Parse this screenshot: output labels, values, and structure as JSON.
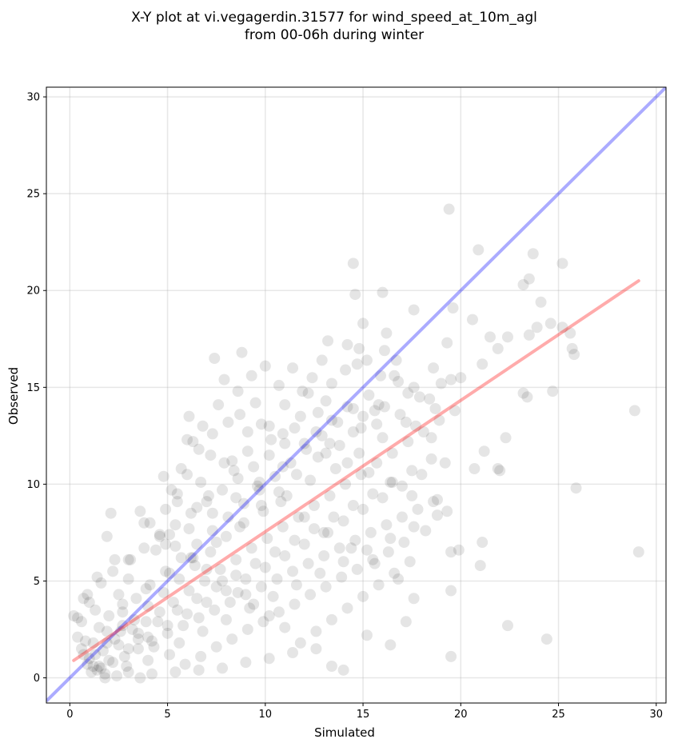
{
  "chart_data": {
    "type": "scatter",
    "title_line1": "X-Y plot at vi.vegagerdin.31577 for wind_speed_at_10m_agl",
    "title_line2": "from 00-06h during winter",
    "xlabel": "Simulated",
    "ylabel": "Observed",
    "xlim": [
      -1.2,
      30.5
    ],
    "ylim": [
      -1.3,
      30.5
    ],
    "xticks": [
      0,
      5,
      10,
      15,
      20,
      25,
      30
    ],
    "yticks": [
      0,
      5,
      10,
      15,
      20,
      25,
      30
    ],
    "xtick_labels": [
      "0",
      "5",
      "10",
      "15",
      "20",
      "25",
      "30"
    ],
    "ytick_labels": [
      "0",
      "5",
      "10",
      "15",
      "20",
      "25",
      "30"
    ],
    "grid": true,
    "point_color": "#000000",
    "point_alpha": 0.1,
    "point_radius_note": "large translucent markers",
    "reference_line": {
      "name": "1:1",
      "color": "#0000ff",
      "alpha": 0.33,
      "from": [
        -1.2,
        -1.2
      ],
      "to": [
        30.5,
        30.5
      ]
    },
    "regression_line": {
      "color": "#ff0000",
      "alpha": 0.33,
      "from": [
        0.2,
        0.9
      ],
      "to": [
        29.1,
        20.5
      ]
    },
    "points": [
      [
        19.4,
        24.2
      ],
      [
        20.9,
        22.1
      ],
      [
        23.7,
        21.9
      ],
      [
        14.5,
        21.4
      ],
      [
        25.2,
        21.4
      ],
      [
        23.5,
        20.6
      ],
      [
        23.2,
        20.3
      ],
      [
        14.6,
        19.8
      ],
      [
        16.0,
        19.9
      ],
      [
        24.1,
        19.4
      ],
      [
        19.6,
        19.1
      ],
      [
        17.6,
        19.0
      ],
      [
        20.6,
        18.5
      ],
      [
        24.6,
        18.3
      ],
      [
        15.0,
        18.3
      ],
      [
        23.9,
        18.1
      ],
      [
        25.2,
        18.1
      ],
      [
        25.6,
        17.8
      ],
      [
        16.2,
        17.8
      ],
      [
        23.5,
        17.7
      ],
      [
        21.5,
        17.6
      ],
      [
        22.4,
        17.6
      ],
      [
        19.3,
        17.3
      ],
      [
        14.2,
        17.2
      ],
      [
        13.2,
        17.4
      ],
      [
        14.8,
        17.0
      ],
      [
        21.9,
        17.0
      ],
      [
        25.7,
        17.0
      ],
      [
        25.8,
        16.7
      ],
      [
        8.8,
        16.8
      ],
      [
        7.4,
        16.5
      ],
      [
        21.1,
        16.2
      ],
      [
        18.6,
        16.0
      ],
      [
        20.0,
        15.5
      ],
      [
        19.5,
        15.4
      ],
      [
        23.2,
        14.7
      ],
      [
        23.4,
        14.5
      ],
      [
        24.7,
        14.8
      ],
      [
        28.9,
        13.8
      ],
      [
        22.3,
        12.4
      ],
      [
        21.2,
        11.7
      ],
      [
        21.9,
        10.8
      ],
      [
        20.7,
        10.8
      ],
      [
        25.9,
        9.8
      ],
      [
        22.0,
        10.7
      ],
      [
        21.1,
        7.0
      ],
      [
        19.9,
        6.6
      ],
      [
        19.5,
        6.5
      ],
      [
        29.1,
        6.5
      ],
      [
        21.0,
        5.8
      ],
      [
        19.5,
        4.5
      ],
      [
        22.4,
        2.7
      ],
      [
        24.4,
        2.0
      ],
      [
        19.5,
        1.1
      ],
      [
        6.1,
        13.5
      ],
      [
        6.3,
        12.2
      ],
      [
        7.9,
        15.4
      ],
      [
        9.3,
        15.6
      ],
      [
        10.0,
        16.1
      ],
      [
        11.4,
        16.0
      ],
      [
        12.9,
        16.4
      ],
      [
        3.6,
        8.6
      ],
      [
        2.1,
        8.5
      ],
      [
        1.9,
        7.3
      ],
      [
        4.1,
        8.0
      ],
      [
        5.7,
        10.8
      ],
      [
        4.8,
        10.4
      ],
      [
        5.2,
        9.7
      ],
      [
        3.1,
        6.1
      ],
      [
        2.3,
        6.1
      ],
      [
        1.4,
        5.2
      ],
      [
        0.9,
        4.3
      ],
      [
        0.7,
        4.1
      ],
      [
        0.4,
        3.1
      ],
      [
        0.2,
        3.2
      ],
      [
        1.3,
        3.5
      ],
      [
        2.0,
        3.2
      ],
      [
        2.5,
        4.3
      ],
      [
        3.0,
        5.1
      ],
      [
        4.4,
        6.6
      ],
      [
        5.1,
        7.4
      ],
      [
        6.5,
        8.8
      ],
      [
        7.1,
        9.4
      ],
      [
        8.3,
        11.2
      ],
      [
        9.1,
        12.7
      ],
      [
        10.2,
        13.0
      ],
      [
        11.0,
        14.1
      ],
      [
        12.2,
        14.7
      ],
      [
        13.4,
        15.2
      ],
      [
        14.1,
        15.9
      ],
      [
        15.2,
        16.4
      ],
      [
        16.1,
        16.9
      ],
      [
        16.8,
        15.3
      ],
      [
        17.3,
        14.7
      ],
      [
        15.6,
        13.8
      ],
      [
        14.9,
        12.9
      ],
      [
        13.8,
        12.0
      ],
      [
        12.7,
        11.4
      ],
      [
        11.6,
        10.5
      ],
      [
        10.7,
        9.6
      ],
      [
        9.8,
        8.9
      ],
      [
        8.9,
        8.0
      ],
      [
        8.0,
        7.3
      ],
      [
        7.2,
        6.5
      ],
      [
        6.4,
        5.8
      ],
      [
        5.6,
        5.1
      ],
      [
        4.8,
        4.4
      ],
      [
        4.0,
        3.7
      ],
      [
        3.3,
        3.0
      ],
      [
        2.6,
        2.4
      ],
      [
        1.9,
        1.8
      ],
      [
        1.3,
        1.2
      ],
      [
        0.9,
        0.7
      ],
      [
        1.1,
        0.3
      ],
      [
        1.6,
        0.5
      ],
      [
        2.2,
        0.8
      ],
      [
        2.8,
        1.1
      ],
      [
        3.5,
        1.5
      ],
      [
        4.2,
        1.9
      ],
      [
        5.0,
        2.3
      ],
      [
        5.8,
        2.7
      ],
      [
        6.6,
        3.1
      ],
      [
        7.4,
        3.5
      ],
      [
        8.2,
        3.9
      ],
      [
        9.0,
        4.3
      ],
      [
        9.8,
        4.7
      ],
      [
        10.6,
        5.1
      ],
      [
        11.4,
        5.5
      ],
      [
        12.2,
        5.9
      ],
      [
        13.0,
        6.3
      ],
      [
        13.8,
        6.7
      ],
      [
        14.6,
        7.1
      ],
      [
        15.4,
        7.5
      ],
      [
        16.2,
        7.9
      ],
      [
        17.0,
        8.3
      ],
      [
        17.8,
        8.7
      ],
      [
        18.6,
        9.1
      ],
      [
        18.8,
        9.2
      ],
      [
        17.5,
        9.4
      ],
      [
        16.4,
        10.1
      ],
      [
        15.3,
        10.6
      ],
      [
        14.2,
        11.1
      ],
      [
        13.1,
        11.6
      ],
      [
        12.0,
        12.1
      ],
      [
        10.9,
        12.6
      ],
      [
        9.8,
        13.1
      ],
      [
        8.7,
        13.6
      ],
      [
        7.6,
        14.1
      ],
      [
        6.8,
        13.0
      ],
      [
        6.0,
        12.3
      ],
      [
        7.2,
        11.5
      ],
      [
        8.4,
        10.7
      ],
      [
        9.6,
        9.9
      ],
      [
        10.8,
        9.1
      ],
      [
        12.0,
        8.3
      ],
      [
        13.2,
        7.5
      ],
      [
        14.4,
        6.7
      ],
      [
        15.6,
        5.9
      ],
      [
        16.8,
        5.1
      ],
      [
        17.6,
        4.1
      ],
      [
        17.2,
        2.9
      ],
      [
        16.4,
        1.7
      ],
      [
        15.2,
        2.2
      ],
      [
        14.0,
        0.4
      ],
      [
        13.4,
        0.6
      ],
      [
        12.6,
        1.5
      ],
      [
        11.4,
        1.3
      ],
      [
        10.2,
        1.0
      ],
      [
        9.0,
        0.8
      ],
      [
        7.8,
        0.5
      ],
      [
        6.6,
        0.4
      ],
      [
        5.4,
        0.3
      ],
      [
        4.2,
        0.2
      ],
      [
        3.6,
        0.0
      ],
      [
        3.0,
        0.3
      ],
      [
        2.4,
        0.1
      ],
      [
        1.8,
        0.2
      ],
      [
        1.4,
        0.4
      ],
      [
        1.2,
        0.6
      ],
      [
        1.0,
        1.0
      ],
      [
        1.7,
        1.4
      ],
      [
        2.3,
        2.0
      ],
      [
        3.2,
        2.5
      ],
      [
        3.9,
        2.9
      ],
      [
        4.6,
        3.4
      ],
      [
        5.3,
        3.9
      ],
      [
        6.1,
        4.5
      ],
      [
        6.9,
        5.0
      ],
      [
        7.7,
        5.6
      ],
      [
        8.5,
        6.1
      ],
      [
        9.3,
        6.7
      ],
      [
        10.1,
        7.2
      ],
      [
        10.9,
        7.8
      ],
      [
        11.7,
        8.3
      ],
      [
        12.5,
        8.9
      ],
      [
        13.3,
        9.4
      ],
      [
        14.1,
        10.0
      ],
      [
        14.9,
        10.5
      ],
      [
        15.7,
        11.1
      ],
      [
        16.5,
        11.6
      ],
      [
        17.3,
        12.2
      ],
      [
        18.1,
        12.7
      ],
      [
        18.9,
        13.3
      ],
      [
        19.7,
        13.8
      ],
      [
        18.4,
        14.4
      ],
      [
        17.6,
        15.0
      ],
      [
        16.6,
        15.6
      ],
      [
        15.8,
        14.1
      ],
      [
        15.0,
        13.5
      ],
      [
        14.2,
        14.0
      ],
      [
        13.4,
        13.3
      ],
      [
        12.6,
        12.7
      ],
      [
        11.8,
        13.5
      ],
      [
        11.0,
        12.1
      ],
      [
        10.2,
        11.5
      ],
      [
        9.4,
        10.9
      ],
      [
        8.6,
        10.3
      ],
      [
        7.8,
        9.7
      ],
      [
        7.0,
        9.1
      ],
      [
        6.2,
        8.5
      ],
      [
        5.4,
        7.9
      ],
      [
        4.6,
        7.3
      ],
      [
        3.8,
        6.7
      ],
      [
        3.0,
        6.1
      ],
      [
        2.2,
        5.5
      ],
      [
        1.6,
        4.9
      ],
      [
        1.0,
        3.9
      ],
      [
        0.6,
        2.9
      ],
      [
        0.4,
        2.1
      ],
      [
        0.6,
        1.5
      ],
      [
        0.8,
        1.9
      ],
      [
        1.5,
        2.6
      ],
      [
        2.7,
        3.4
      ],
      [
        3.4,
        4.1
      ],
      [
        4.1,
        4.8
      ],
      [
        4.9,
        5.5
      ],
      [
        5.7,
        6.2
      ],
      [
        6.5,
        6.9
      ],
      [
        7.3,
        7.6
      ],
      [
        8.1,
        8.3
      ],
      [
        8.9,
        9.0
      ],
      [
        9.7,
        9.7
      ],
      [
        10.5,
        10.4
      ],
      [
        11.3,
        11.1
      ],
      [
        12.1,
        11.8
      ],
      [
        12.9,
        12.5
      ],
      [
        13.7,
        13.2
      ],
      [
        14.5,
        13.9
      ],
      [
        15.3,
        14.6
      ],
      [
        16.1,
        14.0
      ],
      [
        16.9,
        13.6
      ],
      [
        17.7,
        13.0
      ],
      [
        18.5,
        12.4
      ],
      [
        19.2,
        11.1
      ],
      [
        18.0,
        10.5
      ],
      [
        17.0,
        9.9
      ],
      [
        16.0,
        9.3
      ],
      [
        15.0,
        8.7
      ],
      [
        14.0,
        8.1
      ],
      [
        13.0,
        7.5
      ],
      [
        12.0,
        6.9
      ],
      [
        11.0,
        6.3
      ],
      [
        10.0,
        5.7
      ],
      [
        9.0,
        5.1
      ],
      [
        8.0,
        4.5
      ],
      [
        7.0,
        3.9
      ],
      [
        6.0,
        3.3
      ],
      [
        5.0,
        2.7
      ],
      [
        4.0,
        2.1
      ],
      [
        3.0,
        1.5
      ],
      [
        2.0,
        0.9
      ],
      [
        1.5,
        0.6
      ],
      [
        2.5,
        1.7
      ],
      [
        3.5,
        2.3
      ],
      [
        4.5,
        2.9
      ],
      [
        5.5,
        3.5
      ],
      [
        6.5,
        4.1
      ],
      [
        7.5,
        4.7
      ],
      [
        8.5,
        5.3
      ],
      [
        9.5,
        5.9
      ],
      [
        10.5,
        6.5
      ],
      [
        11.5,
        7.1
      ],
      [
        12.5,
        7.7
      ],
      [
        13.5,
        8.3
      ],
      [
        14.5,
        8.9
      ],
      [
        15.5,
        9.5
      ],
      [
        16.5,
        10.1
      ],
      [
        17.5,
        10.7
      ],
      [
        18.5,
        11.3
      ],
      [
        17.4,
        6.0
      ],
      [
        16.6,
        5.4
      ],
      [
        15.8,
        4.8
      ],
      [
        15.0,
        4.2
      ],
      [
        14.2,
        3.6
      ],
      [
        13.4,
        3.0
      ],
      [
        12.6,
        2.4
      ],
      [
        11.8,
        1.8
      ],
      [
        11.0,
        2.6
      ],
      [
        10.2,
        3.2
      ],
      [
        9.4,
        3.8
      ],
      [
        8.6,
        4.4
      ],
      [
        7.8,
        5.0
      ],
      [
        7.0,
        5.6
      ],
      [
        6.2,
        6.2
      ],
      [
        5.4,
        6.8
      ],
      [
        4.6,
        7.4
      ],
      [
        3.8,
        8.0
      ],
      [
        12.4,
        15.5
      ],
      [
        13.1,
        14.3
      ],
      [
        11.9,
        14.8
      ],
      [
        10.7,
        15.1
      ],
      [
        9.5,
        14.2
      ],
      [
        8.6,
        14.8
      ],
      [
        8.1,
        13.2
      ],
      [
        7.3,
        12.6
      ],
      [
        6.6,
        11.8
      ],
      [
        6.0,
        10.5
      ],
      [
        5.5,
        9.1
      ],
      [
        4.9,
        8.7
      ],
      [
        14.7,
        16.2
      ],
      [
        15.9,
        15.6
      ],
      [
        16.7,
        16.4
      ],
      [
        17.9,
        14.5
      ],
      [
        18.7,
        13.9
      ],
      [
        19.0,
        15.2
      ],
      [
        19.3,
        8.6
      ],
      [
        18.2,
        7.6
      ],
      [
        17.1,
        7.0
      ],
      [
        16.3,
        6.5
      ],
      [
        15.5,
        6.1
      ],
      [
        14.7,
        5.6
      ],
      [
        13.9,
        5.2
      ],
      [
        13.1,
        4.7
      ],
      [
        12.3,
        4.3
      ],
      [
        11.5,
        3.8
      ],
      [
        10.7,
        3.4
      ],
      [
        9.9,
        2.9
      ],
      [
        9.1,
        2.5
      ],
      [
        8.3,
        2.0
      ],
      [
        7.5,
        1.6
      ],
      [
        6.7,
        1.1
      ],
      [
        5.9,
        0.7
      ],
      [
        5.1,
        1.2
      ],
      [
        4.3,
        1.6
      ],
      [
        3.5,
        2.0
      ],
      [
        2.7,
        2.7
      ],
      [
        1.9,
        2.4
      ],
      [
        1.2,
        1.8
      ],
      [
        0.7,
        1.2
      ],
      [
        1.8,
        0.0
      ],
      [
        2.9,
        0.6
      ],
      [
        4.0,
        0.9
      ],
      [
        5.6,
        1.8
      ],
      [
        6.8,
        2.4
      ],
      [
        8.0,
        3.0
      ],
      [
        9.2,
        3.6
      ],
      [
        10.4,
        4.2
      ],
      [
        11.6,
        4.8
      ],
      [
        12.8,
        5.4
      ],
      [
        14.0,
        6.0
      ],
      [
        15.2,
        6.6
      ],
      [
        16.4,
        7.2
      ],
      [
        17.6,
        7.8
      ],
      [
        18.8,
        8.4
      ],
      [
        12.3,
        10.2
      ],
      [
        11.1,
        9.4
      ],
      [
        9.9,
        8.6
      ],
      [
        8.7,
        7.8
      ],
      [
        7.5,
        7.0
      ],
      [
        6.3,
        6.2
      ],
      [
        5.1,
        5.4
      ],
      [
        3.9,
        4.6
      ],
      [
        2.7,
        3.8
      ],
      [
        13.6,
        10.8
      ],
      [
        14.8,
        11.6
      ],
      [
        16.0,
        12.4
      ],
      [
        17.2,
        13.2
      ],
      [
        10.9,
        10.9
      ],
      [
        9.7,
        10.1
      ],
      [
        8.5,
        9.3
      ],
      [
        7.3,
        8.5
      ],
      [
        6.1,
        7.7
      ],
      [
        4.9,
        6.9
      ],
      [
        13.3,
        12.1
      ],
      [
        14.5,
        12.7
      ],
      [
        15.7,
        13.1
      ],
      [
        11.5,
        12.9
      ],
      [
        12.7,
        13.7
      ],
      [
        10.3,
        12.3
      ],
      [
        9.1,
        11.7
      ],
      [
        7.9,
        11.1
      ],
      [
        6.7,
        10.1
      ],
      [
        5.5,
        9.5
      ]
    ]
  }
}
